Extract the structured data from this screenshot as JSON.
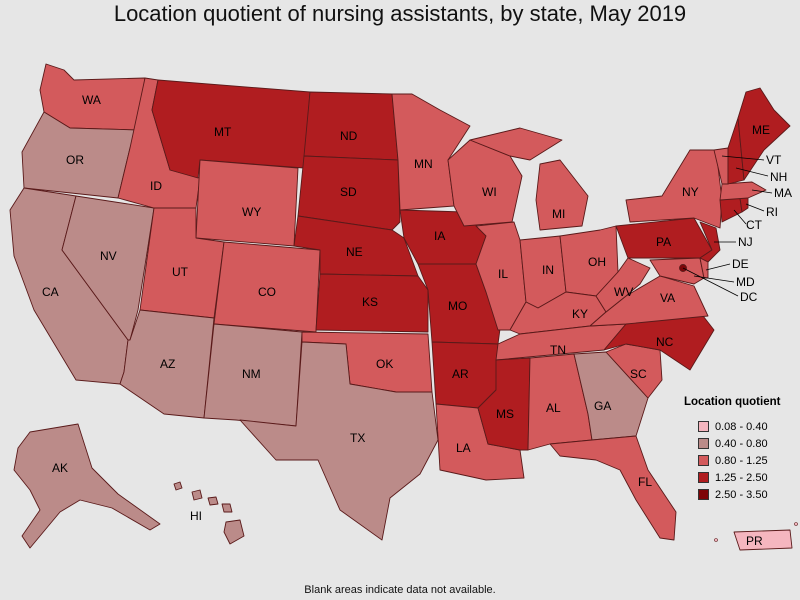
{
  "title": "Location quotient of nursing assistants, by state, May 2019",
  "legend": {
    "title": "Location quotient",
    "items": [
      {
        "label": "0.08 - 0.40",
        "color": "#f5b6bf"
      },
      {
        "label": "0.40 - 0.80",
        "color": "#bb8b89"
      },
      {
        "label": "0.80 - 1.25",
        "color": "#d35a5c"
      },
      {
        "label": "1.25 - 2.50",
        "color": "#b01d20"
      },
      {
        "label": "2.50 - 3.50",
        "color": "#7e0508"
      }
    ]
  },
  "states": {
    "WA": {
      "label": "WA",
      "class": "0.80 - 1.25"
    },
    "OR": {
      "label": "OR",
      "class": "0.40 - 0.80"
    },
    "CA": {
      "label": "CA",
      "class": "0.40 - 0.80"
    },
    "NV": {
      "label": "NV",
      "class": "0.40 - 0.80"
    },
    "ID": {
      "label": "ID",
      "class": "0.80 - 1.25"
    },
    "MT": {
      "label": "MT",
      "class": "1.25 - 2.50"
    },
    "WY": {
      "label": "WY",
      "class": "0.80 - 1.25"
    },
    "UT": {
      "label": "UT",
      "class": "0.80 - 1.25"
    },
    "AZ": {
      "label": "AZ",
      "class": "0.40 - 0.80"
    },
    "CO": {
      "label": "CO",
      "class": "0.80 - 1.25"
    },
    "NM": {
      "label": "NM",
      "class": "0.40 - 0.80"
    },
    "ND": {
      "label": "ND",
      "class": "1.25 - 2.50"
    },
    "SD": {
      "label": "SD",
      "class": "1.25 - 2.50"
    },
    "NE": {
      "label": "NE",
      "class": "1.25 - 2.50"
    },
    "KS": {
      "label": "KS",
      "class": "1.25 - 2.50"
    },
    "OK": {
      "label": "OK",
      "class": "0.80 - 1.25"
    },
    "TX": {
      "label": "TX",
      "class": "0.40 - 0.80"
    },
    "MN": {
      "label": "MN",
      "class": "0.80 - 1.25"
    },
    "IA": {
      "label": "IA",
      "class": "1.25 - 2.50"
    },
    "MO": {
      "label": "MO",
      "class": "1.25 - 2.50"
    },
    "AR": {
      "label": "AR",
      "class": "1.25 - 2.50"
    },
    "LA": {
      "label": "LA",
      "class": "0.80 - 1.25"
    },
    "WI": {
      "label": "WI",
      "class": "0.80 - 1.25"
    },
    "IL": {
      "label": "IL",
      "class": "0.80 - 1.25"
    },
    "MI": {
      "label": "MI",
      "class": "0.80 - 1.25"
    },
    "IN": {
      "label": "IN",
      "class": "0.80 - 1.25"
    },
    "OH": {
      "label": "OH",
      "class": "0.80 - 1.25"
    },
    "KY": {
      "label": "KY",
      "class": "0.80 - 1.25"
    },
    "TN": {
      "label": "TN",
      "class": "0.80 - 1.25"
    },
    "MS": {
      "label": "MS",
      "class": "1.25 - 2.50"
    },
    "AL": {
      "label": "AL",
      "class": "0.80 - 1.25"
    },
    "GA": {
      "label": "GA",
      "class": "0.40 - 0.80"
    },
    "FL": {
      "label": "FL",
      "class": "0.80 - 1.25"
    },
    "SC": {
      "label": "SC",
      "class": "0.80 - 1.25"
    },
    "NC": {
      "label": "NC",
      "class": "1.25 - 2.50"
    },
    "VA": {
      "label": "VA",
      "class": "0.80 - 1.25"
    },
    "WV": {
      "label": "WV",
      "class": "0.80 - 1.25"
    },
    "PA": {
      "label": "PA",
      "class": "1.25 - 2.50"
    },
    "NY": {
      "label": "NY",
      "class": "0.80 - 1.25"
    },
    "NJ": {
      "label": "NJ",
      "class": "1.25 - 2.50"
    },
    "DE": {
      "label": "DE",
      "class": "0.80 - 1.25"
    },
    "MD": {
      "label": "MD",
      "class": "0.80 - 1.25"
    },
    "DC": {
      "label": "DC",
      "class": "2.50 - 3.50"
    },
    "CT": {
      "label": "CT",
      "class": "1.25 - 2.50"
    },
    "RI": {
      "label": "RI",
      "class": "1.25 - 2.50"
    },
    "MA": {
      "label": "MA",
      "class": "0.80 - 1.25"
    },
    "VT": {
      "label": "VT",
      "class": "0.80 - 1.25"
    },
    "NH": {
      "label": "NH",
      "class": "1.25 - 2.50"
    },
    "ME": {
      "label": "ME",
      "class": "1.25 - 2.50"
    },
    "AK": {
      "label": "AK",
      "class": "0.40 - 0.80"
    },
    "HI": {
      "label": "HI",
      "class": "0.40 - 0.80"
    },
    "PR": {
      "label": "PR",
      "class": "0.08 - 0.40"
    }
  },
  "footnote": "Blank areas indicate data not available."
}
